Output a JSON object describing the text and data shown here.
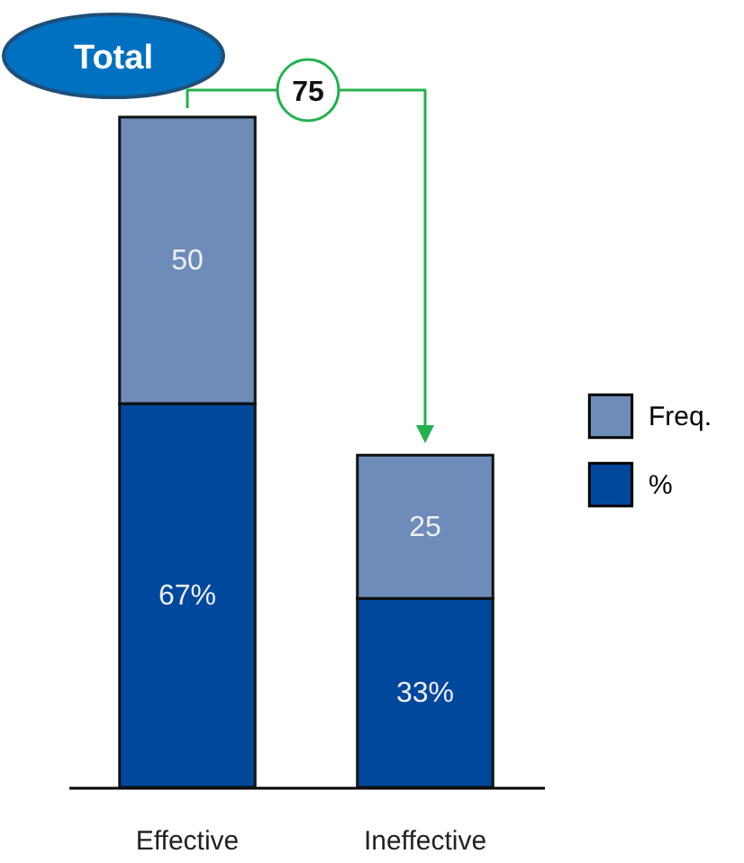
{
  "chart_data": {
    "type": "bar",
    "stacked": true,
    "categories": [
      "Effective",
      "Ineffective"
    ],
    "series": [
      {
        "name": "%",
        "color": "#00489c",
        "values": [
          67,
          33
        ],
        "value_labels": [
          "67%",
          "33%"
        ]
      },
      {
        "name": "Freq.",
        "color": "#6e8cba",
        "values": [
          50,
          25
        ],
        "value_labels": [
          "50",
          "25"
        ]
      }
    ],
    "legend": "right",
    "tick_labels": "x",
    "annotations": [
      "Total",
      "75"
    ]
  }
}
